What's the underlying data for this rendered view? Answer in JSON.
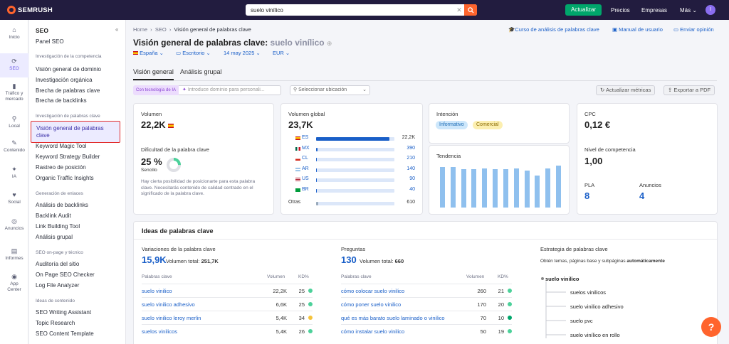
{
  "topbar": {
    "logo": "SEMRUSH",
    "search_value": "suelo vinílico",
    "update": "Actualizar",
    "prices": "Precios",
    "companies": "Empresas",
    "more": "Más",
    "avatar": "I"
  },
  "leftnav": [
    {
      "label": "Inicio",
      "icon": "home-icon"
    },
    {
      "label": "SEO",
      "icon": "seo-icon"
    },
    {
      "label": "Tráfico y mercado",
      "icon": "chart-icon"
    },
    {
      "label": "Local",
      "icon": "pin-icon"
    },
    {
      "label": "Contenido",
      "icon": "pen-icon"
    },
    {
      "label": "IA",
      "icon": "sparkle-icon"
    },
    {
      "label": "Social",
      "icon": "heart-icon"
    },
    {
      "label": "Anuncios",
      "icon": "ads-icon"
    },
    {
      "label": "Informes",
      "icon": "report-icon"
    },
    {
      "label": "App Center",
      "icon": "apps-icon"
    }
  ],
  "sidemenu": {
    "title": "SEO",
    "panel": "Panel SEO",
    "sec1": "Investigación de la competencia",
    "comp": [
      "Visión general de dominio",
      "Investigación orgánica",
      "Brecha de palabras clave",
      "Brecha de backlinks"
    ],
    "sec2": "Investigación de palabras clave",
    "selected": "Visión general de palabras clave",
    "kw": [
      "Keyword Magic Tool",
      "Keyword Strategy Builder",
      "Rastreo de posición",
      "Organic Traffic Insights"
    ],
    "sec3": "Generación de enlaces",
    "links": [
      "Análisis de backlinks",
      "Backlink Audit",
      "Link Building Tool",
      "Análisis grupal"
    ],
    "sec4": "SEO on-page y técnico",
    "onpage": [
      "Auditoría del sitio",
      "On Page SEO Checker",
      "Log File Analyzer"
    ],
    "sec5": "Ideas de contenido",
    "content": [
      "SEO Writing Assistant",
      "Topic Research",
      "SEO Content Template"
    ]
  },
  "main": {
    "crumb1": "Home",
    "crumb2": "SEO",
    "crumb3": "Visión general de palabras clave",
    "link_course": "Curso de análisis de palabras clave",
    "link_manual": "Manual de usuario",
    "link_feedback": "Enviar opinión",
    "title": "Visión general de palabras clave:",
    "title_kw": "suelo vinílico",
    "f_country": "España",
    "f_device": "Escritorio",
    "f_date": "14 may 2025",
    "f_currency": "EUR",
    "tab1": "Visión general",
    "tab2": "Análisis grupal",
    "ai_tag": "Con tecnología de IA",
    "ai_placeholder": "Introduce dominio para personali...",
    "location": "Seleccionar ubicación",
    "update_metrics": "Actualizar métricas",
    "export_pdf": "Exportar a PDF"
  },
  "volume": {
    "label": "Volumen",
    "value": "22,2K",
    "kd_label": "Dificultad de la palabra clave",
    "kd_value": "25 %",
    "kd_level": "Sencillo",
    "kd_percent": 25,
    "kd_desc": "Hay cierta posibilidad de posicionarte para esta palabra clave. Necesitarás contenido de calidad centrado en el significado de la palabra clave."
  },
  "global": {
    "label": "Volumen global",
    "value": "23,7K",
    "rows": [
      {
        "cc": "ES",
        "value": "22,2K",
        "pct": 0.94
      },
      {
        "cc": "MX",
        "value": "390",
        "pct": 0.02
      },
      {
        "cc": "CL",
        "value": "210",
        "pct": 0.01
      },
      {
        "cc": "AR",
        "value": "140",
        "pct": 0.006
      },
      {
        "cc": "US",
        "value": "90",
        "pct": 0.004
      },
      {
        "cc": "BR",
        "value": "40",
        "pct": 0.002
      }
    ],
    "others_label": "Otras",
    "others_value": "610",
    "others_pct": 0.03
  },
  "intent": {
    "label": "Intención",
    "b1": "Informativo",
    "b2": "Comercial"
  },
  "trend": {
    "label": "Tendencia",
    "values": [
      0.9,
      0.9,
      0.86,
      0.86,
      0.88,
      0.86,
      0.86,
      0.88,
      0.82,
      0.72,
      0.88,
      0.93
    ]
  },
  "cpc": {
    "label": "CPC",
    "value": "0,12 €",
    "comp_label": "Nivel de competencia",
    "comp_value": "1,00",
    "pla_label": "PLA",
    "pla_value": "8",
    "ads_label": "Anuncios",
    "ads_value": "4"
  },
  "ideas": {
    "title": "Ideas de palabras clave",
    "var_title": "Variaciones de la palabra clave",
    "var_count": "15,9K",
    "var_total_label": "Volumen total:",
    "var_total": "251,7K",
    "q_title": "Preguntas",
    "q_count": "130",
    "q_total_label": "Volumen total:",
    "q_total": "660",
    "col_kw": "Palabras clave",
    "col_vol": "Volumen",
    "col_kd": "KD%",
    "variations": [
      {
        "kw": "suelo vinilico",
        "vol": "22,2K",
        "kd": "25"
      },
      {
        "kw": "suelo vinilico adhesivo",
        "vol": "6,6K",
        "kd": "25"
      },
      {
        "kw": "suelo vinilico leroy merlin",
        "vol": "5,4K",
        "kd": "34"
      },
      {
        "kw": "suelos vinilicos",
        "vol": "5,4K",
        "kd": "26"
      }
    ],
    "questions": [
      {
        "kw": "cómo colocar suelo vinilico",
        "vol": "260",
        "kd": "21"
      },
      {
        "kw": "cómo poner suelo vinilico",
        "vol": "170",
        "kd": "20"
      },
      {
        "kw": "qué es más barato suelo laminado o vinilico",
        "vol": "70",
        "kd": "10"
      },
      {
        "kw": "cómo instalar suelo vinilico",
        "vol": "50",
        "kd": "19"
      }
    ],
    "strategy_title": "Estrategia de palabras clave",
    "strategy_desc": "Obtén temas, páginas base y subpáginas",
    "strategy_bold": "automáticamente",
    "tree_root": "suelo vinilico",
    "tree": [
      "suelos vinilicos",
      "suelo vinilico adhesivo",
      "suelo pvc",
      "suelo vinílico en rollo"
    ]
  },
  "colors": {
    "kd_easy": "#4cd19a",
    "kd_mid": "#f5c33b",
    "kd_low": "#00a66b",
    "accent": "#6c5ce7"
  },
  "help": "?"
}
